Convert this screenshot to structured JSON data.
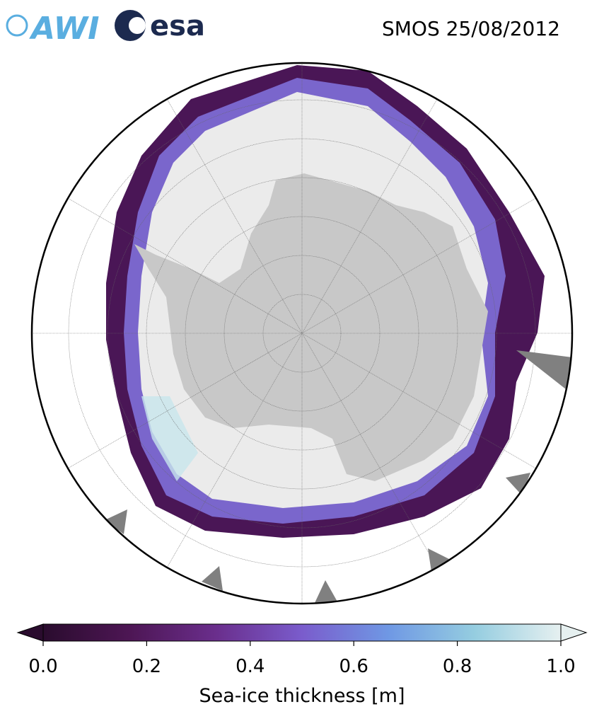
{
  "header": {
    "logos": [
      "AWI",
      "esa"
    ],
    "title": "SMOS 25/08/2012"
  },
  "colorbar": {
    "label": "Sea-ice thickness [m]",
    "lim": [
      0,
      1
    ],
    "ticks": [
      {
        "value": 0,
        "label": "0.0"
      },
      {
        "value": 0.2,
        "label": "0.2"
      },
      {
        "value": 0.4,
        "label": "0.4"
      },
      {
        "value": 0.6,
        "label": "0.6"
      },
      {
        "value": 0.8,
        "label": "0.8"
      },
      {
        "value": 1,
        "label": "1.0"
      }
    ],
    "colors": [
      "#2a0c2e",
      "#4d1654",
      "#6a2e8c",
      "#7a5ccc",
      "#6f98e4",
      "#95cde0",
      "#e6f0f0"
    ]
  }
}
